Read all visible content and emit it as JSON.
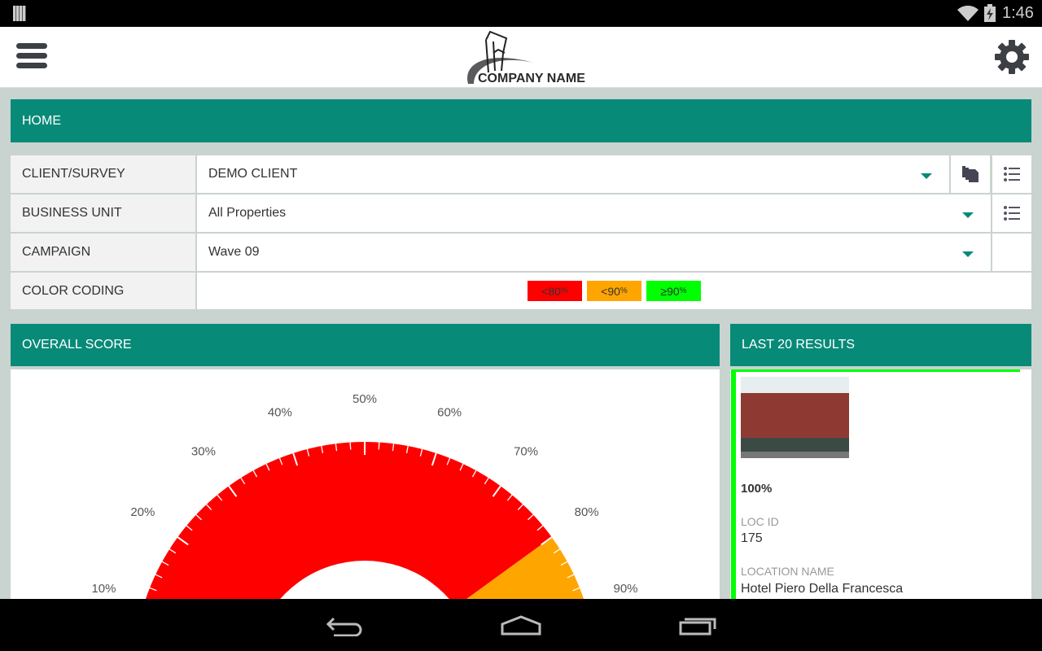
{
  "status_bar": {
    "time": "1:46",
    "icons": [
      "barcode-icon",
      "wifi-icon",
      "battery-charging-icon"
    ]
  },
  "header": {
    "logo_text": "COMPANY NAME",
    "menu_icon": "hamburger-menu-icon",
    "settings_icon": "gear-icon"
  },
  "home": {
    "title": "HOME"
  },
  "filters": [
    {
      "label": "CLIENT/SURVEY",
      "value": "DEMO CLIENT"
    },
    {
      "label": "BUSINESS UNIT",
      "value": "All Properties"
    },
    {
      "label": "CAMPAIGN",
      "value": "Wave 09"
    },
    {
      "label": "COLOR CODING"
    }
  ],
  "color_coding": [
    {
      "label": "<80",
      "unit": "%",
      "color": "#ff0000"
    },
    {
      "label": "<90",
      "unit": "%",
      "color": "#ffa500"
    },
    {
      "label": "≥90",
      "unit": "%",
      "color": "#00ff00"
    }
  ],
  "overall": {
    "title": "OVERALL SCORE",
    "tick_labels": [
      "10%",
      "20%",
      "30%",
      "40%",
      "50%",
      "60%",
      "70%",
      "80%",
      "90%"
    ]
  },
  "chart_data": {
    "type": "gauge",
    "range": [
      0,
      100
    ],
    "bands": [
      {
        "from": 0,
        "to": 80,
        "color": "#ff0000"
      },
      {
        "from": 80,
        "to": 90,
        "color": "#ffa500"
      }
    ],
    "major_tick_step": 10,
    "minor_tick_step": 2
  },
  "last_results": {
    "title": "LAST 20 RESULTS",
    "items": [
      {
        "score": "100%",
        "loc_id_label": "LOC ID",
        "loc_id": "175",
        "location_name_label": "LOCATION NAME",
        "location_name": "Hotel Piero Della Francesca",
        "border_color": "#00ff00"
      }
    ]
  },
  "nav": {
    "icons": [
      "back-icon",
      "home-icon",
      "recent-apps-icon"
    ]
  }
}
